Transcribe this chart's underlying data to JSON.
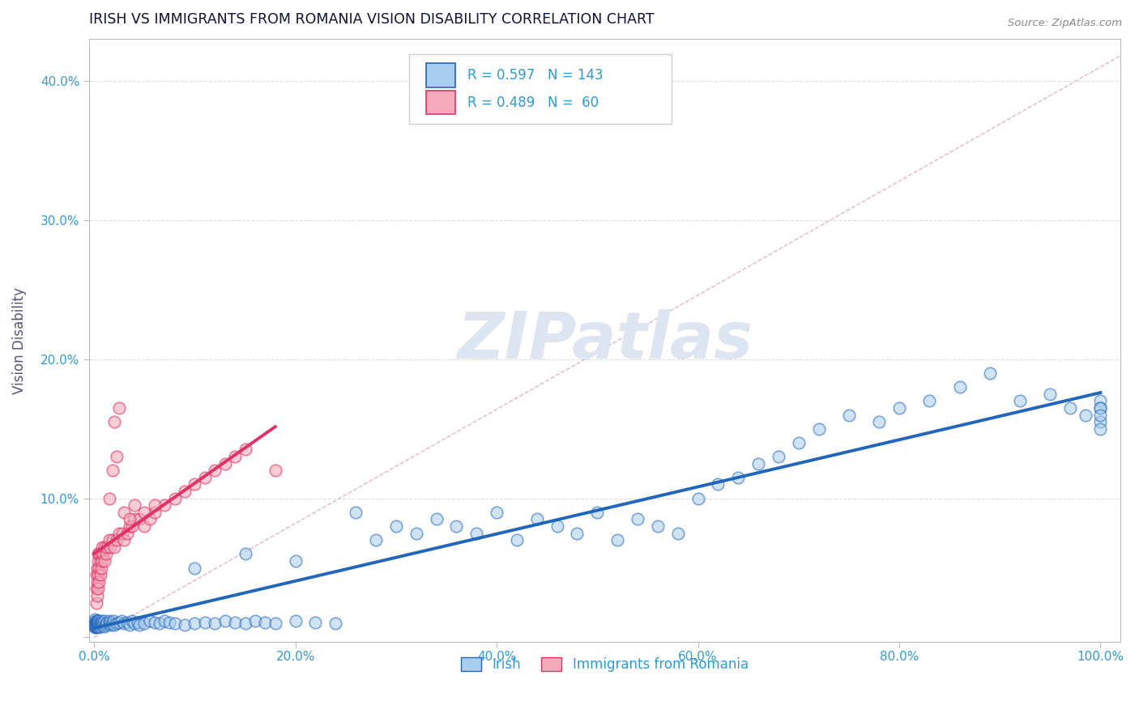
{
  "title": "IRISH VS IMMIGRANTS FROM ROMANIA VISION DISABILITY CORRELATION CHART",
  "source": "Source: ZipAtlas.com",
  "ylabel": "Vision Disability",
  "R_irish": 0.597,
  "N_irish": 143,
  "R_romania": 0.489,
  "N_romania": 60,
  "xlim": [
    -0.005,
    1.02
  ],
  "ylim": [
    -0.003,
    0.43
  ],
  "xticks": [
    0.0,
    0.2,
    0.4,
    0.6,
    0.8,
    1.0
  ],
  "yticks": [
    0.0,
    0.1,
    0.2,
    0.3,
    0.4
  ],
  "xtick_labels": [
    "0.0%",
    "20.0%",
    "40.0%",
    "60.0%",
    "80.0%",
    "100.0%"
  ],
  "ytick_labels": [
    "",
    "10.0%",
    "20.0%",
    "30.0%",
    "40.0%"
  ],
  "color_irish_fill": "#aaccee",
  "color_irish_edge": "#2266bb",
  "color_romania_fill": "#f5aabb",
  "color_romania_edge": "#dd3366",
  "color_diagonal": "#ddb0b8",
  "color_grid": "#dddddd",
  "watermark_color": "#dde5f0",
  "title_color": "#111133",
  "axis_tick_color": "#3399cc",
  "source_color": "#888888",
  "irish_x": [
    0.001,
    0.001,
    0.001,
    0.001,
    0.001,
    0.001,
    0.001,
    0.001,
    0.001,
    0.001,
    0.002,
    0.002,
    0.002,
    0.002,
    0.002,
    0.002,
    0.002,
    0.002,
    0.002,
    0.002,
    0.003,
    0.003,
    0.003,
    0.003,
    0.003,
    0.003,
    0.003,
    0.003,
    0.003,
    0.003,
    0.004,
    0.004,
    0.004,
    0.004,
    0.004,
    0.004,
    0.004,
    0.004,
    0.004,
    0.004,
    0.005,
    0.005,
    0.005,
    0.005,
    0.005,
    0.005,
    0.006,
    0.006,
    0.006,
    0.006,
    0.007,
    0.007,
    0.007,
    0.008,
    0.008,
    0.009,
    0.009,
    0.01,
    0.01,
    0.01,
    0.012,
    0.012,
    0.013,
    0.015,
    0.015,
    0.016,
    0.017,
    0.018,
    0.019,
    0.02,
    0.022,
    0.025,
    0.027,
    0.03,
    0.033,
    0.035,
    0.038,
    0.04,
    0.043,
    0.045,
    0.05,
    0.055,
    0.06,
    0.065,
    0.07,
    0.075,
    0.08,
    0.09,
    0.1,
    0.11,
    0.12,
    0.13,
    0.14,
    0.15,
    0.16,
    0.17,
    0.18,
    0.2,
    0.22,
    0.24,
    0.26,
    0.28,
    0.3,
    0.32,
    0.34,
    0.36,
    0.38,
    0.4,
    0.42,
    0.44,
    0.46,
    0.48,
    0.5,
    0.52,
    0.54,
    0.56,
    0.58,
    0.6,
    0.62,
    0.64,
    0.66,
    0.68,
    0.7,
    0.72,
    0.75,
    0.78,
    0.8,
    0.83,
    0.86,
    0.89,
    0.92,
    0.95,
    0.97,
    0.985,
    1.0,
    1.0,
    1.0,
    1.0,
    1.0,
    1.0,
    0.1,
    0.15,
    0.2
  ],
  "irish_y": [
    0.01,
    0.008,
    0.012,
    0.009,
    0.011,
    0.007,
    0.013,
    0.01,
    0.008,
    0.009,
    0.009,
    0.011,
    0.008,
    0.01,
    0.012,
    0.007,
    0.009,
    0.011,
    0.008,
    0.01,
    0.01,
    0.012,
    0.009,
    0.011,
    0.008,
    0.01,
    0.012,
    0.009,
    0.011,
    0.008,
    0.009,
    0.011,
    0.01,
    0.012,
    0.008,
    0.01,
    0.009,
    0.011,
    0.008,
    0.012,
    0.01,
    0.009,
    0.011,
    0.008,
    0.012,
    0.01,
    0.009,
    0.011,
    0.01,
    0.008,
    0.01,
    0.009,
    0.011,
    0.01,
    0.012,
    0.009,
    0.011,
    0.01,
    0.012,
    0.008,
    0.01,
    0.009,
    0.011,
    0.01,
    0.012,
    0.011,
    0.009,
    0.01,
    0.012,
    0.009,
    0.01,
    0.011,
    0.012,
    0.01,
    0.011,
    0.009,
    0.012,
    0.01,
    0.011,
    0.009,
    0.01,
    0.012,
    0.011,
    0.01,
    0.012,
    0.011,
    0.01,
    0.009,
    0.01,
    0.011,
    0.01,
    0.012,
    0.011,
    0.01,
    0.012,
    0.011,
    0.01,
    0.012,
    0.011,
    0.01,
    0.09,
    0.07,
    0.08,
    0.075,
    0.085,
    0.08,
    0.075,
    0.09,
    0.07,
    0.085,
    0.08,
    0.075,
    0.09,
    0.07,
    0.085,
    0.08,
    0.075,
    0.1,
    0.11,
    0.115,
    0.125,
    0.13,
    0.14,
    0.15,
    0.16,
    0.155,
    0.165,
    0.17,
    0.18,
    0.19,
    0.17,
    0.175,
    0.165,
    0.16,
    0.17,
    0.165,
    0.155,
    0.15,
    0.165,
    0.16,
    0.05,
    0.06,
    0.055
  ],
  "romania_x": [
    0.002,
    0.002,
    0.002,
    0.003,
    0.003,
    0.003,
    0.004,
    0.004,
    0.004,
    0.004,
    0.005,
    0.005,
    0.005,
    0.006,
    0.006,
    0.007,
    0.007,
    0.008,
    0.008,
    0.009,
    0.01,
    0.01,
    0.012,
    0.013,
    0.015,
    0.016,
    0.018,
    0.02,
    0.022,
    0.025,
    0.028,
    0.03,
    0.033,
    0.035,
    0.038,
    0.04,
    0.045,
    0.05,
    0.055,
    0.06,
    0.07,
    0.08,
    0.09,
    0.1,
    0.11,
    0.12,
    0.13,
    0.14,
    0.15,
    0.18,
    0.02,
    0.025,
    0.015,
    0.018,
    0.022,
    0.03,
    0.035,
    0.04,
    0.05,
    0.06
  ],
  "romania_y": [
    0.025,
    0.035,
    0.045,
    0.03,
    0.04,
    0.05,
    0.035,
    0.045,
    0.055,
    0.06,
    0.04,
    0.05,
    0.06,
    0.045,
    0.055,
    0.05,
    0.06,
    0.055,
    0.065,
    0.06,
    0.055,
    0.065,
    0.06,
    0.065,
    0.07,
    0.065,
    0.07,
    0.065,
    0.07,
    0.075,
    0.075,
    0.07,
    0.075,
    0.08,
    0.08,
    0.085,
    0.085,
    0.08,
    0.085,
    0.09,
    0.095,
    0.1,
    0.105,
    0.11,
    0.115,
    0.12,
    0.125,
    0.13,
    0.135,
    0.12,
    0.155,
    0.165,
    0.1,
    0.12,
    0.13,
    0.09,
    0.085,
    0.095,
    0.09,
    0.095
  ]
}
